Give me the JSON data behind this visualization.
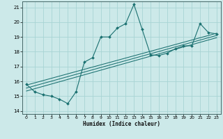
{
  "xlabel": "Humidex (Indice chaleur)",
  "ylabel": "",
  "xlim": [
    -0.5,
    23.5
  ],
  "ylim": [
    13.8,
    21.4
  ],
  "xticks": [
    0,
    1,
    2,
    3,
    4,
    5,
    6,
    7,
    8,
    9,
    10,
    11,
    12,
    13,
    14,
    15,
    16,
    17,
    18,
    19,
    20,
    21,
    22,
    23
  ],
  "yticks": [
    14,
    15,
    16,
    17,
    18,
    19,
    20,
    21
  ],
  "bg_color": "#cce9e9",
  "line_color": "#1a7070",
  "grid_color": "#a8d4d4",
  "wiggly": {
    "x": [
      0,
      1,
      2,
      3,
      4,
      5,
      6,
      7,
      8,
      9,
      10,
      11,
      12,
      13,
      14,
      15,
      16,
      17,
      18,
      19,
      20,
      21,
      22,
      23
    ],
    "y": [
      15.8,
      15.3,
      15.1,
      15.0,
      14.8,
      14.5,
      15.3,
      17.3,
      17.6,
      19.0,
      19.0,
      19.6,
      19.9,
      21.2,
      19.5,
      17.8,
      17.75,
      17.9,
      18.2,
      18.4,
      18.4,
      19.9,
      19.3,
      19.2
    ]
  },
  "trend_lines": [
    {
      "x0": 0,
      "y0": 15.75,
      "x1": 23,
      "y1": 19.25
    },
    {
      "x0": 0,
      "y0": 15.55,
      "x1": 23,
      "y1": 19.1
    },
    {
      "x0": 0,
      "y0": 15.35,
      "x1": 23,
      "y1": 18.95
    }
  ]
}
